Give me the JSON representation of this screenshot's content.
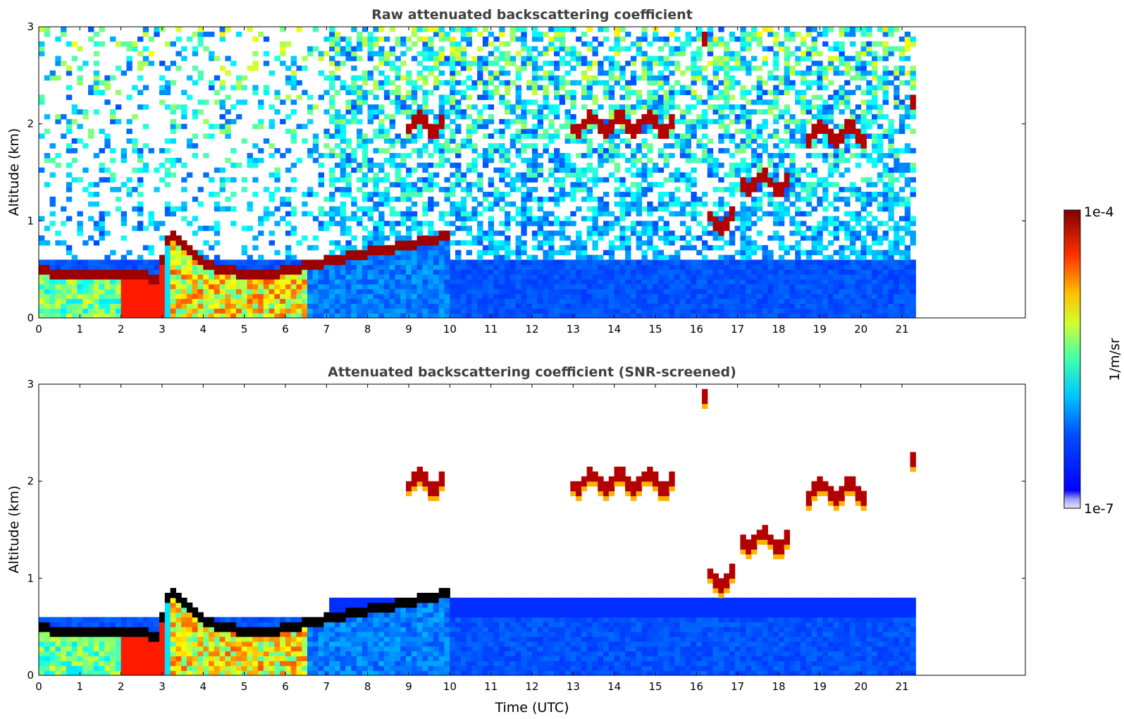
{
  "chart_data": [
    {
      "type": "heatmap",
      "title": "Raw attenuated backscattering coefficient",
      "xlabel": "",
      "ylabel": "Altitude (km)",
      "xlim": [
        0,
        24
      ],
      "ylim": [
        0,
        3
      ],
      "x_ticks": [
        "0",
        "1",
        "2",
        "3",
        "4",
        "5",
        "6",
        "7",
        "8",
        "9",
        "10",
        "11",
        "12",
        "13",
        "14",
        "15",
        "16",
        "17",
        "18",
        "19",
        "20",
        "21"
      ],
      "y_ticks": [
        "0",
        "1",
        "2",
        "3"
      ],
      "data_end_time": 21.33,
      "boundary_layer_top": [
        {
          "t": 0,
          "h": 0.48
        },
        {
          "t": 1,
          "h": 0.46
        },
        {
          "t": 2,
          "h": 0.44
        },
        {
          "t": 2.9,
          "h": 0.42
        },
        {
          "t": 3.2,
          "h": 0.9
        },
        {
          "t": 3.5,
          "h": 0.75
        },
        {
          "t": 4,
          "h": 0.55
        },
        {
          "t": 5,
          "h": 0.45
        },
        {
          "t": 6,
          "h": 0.48
        },
        {
          "t": 7,
          "h": 0.58
        },
        {
          "t": 8,
          "h": 0.68
        },
        {
          "t": 9,
          "h": 0.75
        },
        {
          "t": 10,
          "h": 0.85
        }
      ],
      "cloud_layers": [
        {
          "t0": 8.9,
          "t1": 9.9,
          "h": 2.0
        },
        {
          "t0": 12.9,
          "t1": 15.4,
          "h": 2.0
        },
        {
          "t0": 16.1,
          "t1": 16.3,
          "h": 2.8
        },
        {
          "t0": 16.3,
          "t1": 16.9,
          "h": 1.0
        },
        {
          "t0": 17.0,
          "t1": 18.3,
          "h": 1.4
        },
        {
          "t0": 18.6,
          "t1": 20.1,
          "h": 1.9
        },
        {
          "t0": 21.2,
          "t1": 21.33,
          "h": 2.2
        }
      ]
    },
    {
      "type": "heatmap",
      "title": "Attenuated backscattering coefficient (SNR-screened)",
      "xlabel": "Time (UTC)",
      "ylabel": "Altitude (km)",
      "xlim": [
        0,
        24
      ],
      "ylim": [
        0,
        3
      ],
      "x_ticks": [
        "0",
        "1",
        "2",
        "3",
        "4",
        "5",
        "6",
        "7",
        "8",
        "9",
        "10",
        "11",
        "12",
        "13",
        "14",
        "15",
        "16",
        "17",
        "18",
        "19",
        "20",
        "21"
      ],
      "y_ticks": [
        "0",
        "1",
        "2",
        "3"
      ],
      "data_end_time": 21.33
    }
  ],
  "colorbar": {
    "label": "1/m/sr",
    "max_label": "1e-4",
    "min_label": "1e-7",
    "scale": "log",
    "colormap": "jet"
  }
}
